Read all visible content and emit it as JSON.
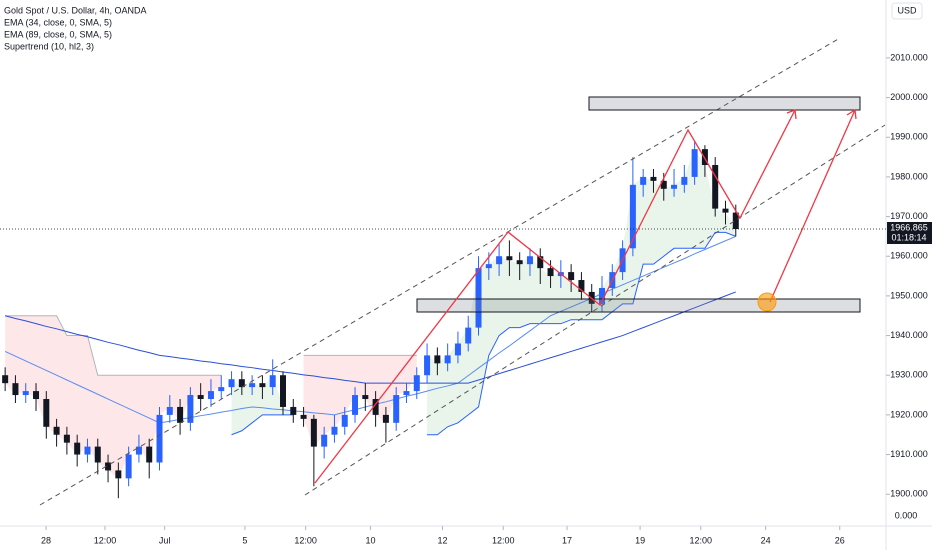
{
  "chart_data": {
    "type": "candlestick",
    "title": "Gold Spot / U.S. Dollar, 4h, OANDA",
    "currency": "USD",
    "countdown": "01:18:14",
    "volume_scale_label": "0.000",
    "up_color": "#2962ff",
    "down_color": "#131722",
    "xlim": [
      -0.5,
      85.5
    ],
    "ylim": [
      1893.5,
      2024.6
    ],
    "yticks": [
      {
        "value": 1900,
        "label": "1900.000"
      },
      {
        "value": 1910,
        "label": "1910.000"
      },
      {
        "value": 1920,
        "label": "1920.000"
      },
      {
        "value": 1930,
        "label": "1930.000"
      },
      {
        "value": 1940,
        "label": "1940.000"
      },
      {
        "value": 1950,
        "label": "1950.000"
      },
      {
        "value": 1960,
        "label": "1960.000"
      },
      {
        "value": 1970,
        "label": "1970.000"
      },
      {
        "value": 1980,
        "label": "1980.000"
      },
      {
        "value": 1990,
        "label": "1990.000"
      },
      {
        "value": 2000,
        "label": "2000.000"
      },
      {
        "value": 2010,
        "label": "2010.000"
      }
    ],
    "xticks": [
      {
        "value": 3.97,
        "label": "28"
      },
      {
        "value": 9.7,
        "label": "12:00"
      },
      {
        "value": 15.5,
        "label": "Jul"
      },
      {
        "value": 23.3,
        "label": "5"
      },
      {
        "value": 29.2,
        "label": "12:00"
      },
      {
        "value": 35.5,
        "label": "10"
      },
      {
        "value": 42.5,
        "label": "12"
      },
      {
        "value": 48.4,
        "label": "12:00"
      },
      {
        "value": 54.6,
        "label": "17"
      },
      {
        "value": 61.7,
        "label": "19"
      },
      {
        "value": 67.6,
        "label": "12:00"
      },
      {
        "value": 73.9,
        "label": "24"
      },
      {
        "value": 81.1,
        "label": "26"
      }
    ],
    "open": [
      1930,
      1928,
      1925,
      1926,
      1924,
      1917,
      1915,
      1913,
      1910,
      1912,
      1908,
      1906,
      1904,
      1910,
      1912,
      1908,
      1920,
      1922,
      1918,
      1925,
      1924,
      1926,
      1927,
      1929,
      1927,
      1928,
      1927,
      1930,
      1922,
      1920,
      1919,
      1912,
      1915,
      1917,
      1920,
      1925,
      1924,
      1920,
      1918,
      1925,
      1926,
      1930,
      1935,
      1933,
      1935,
      1938,
      1942,
      1957,
      1958,
      1960,
      1959,
      1958,
      1960,
      1957,
      1955,
      1956,
      1954,
      1951,
      1948,
      1952,
      1956,
      1962,
      1978,
      1980,
      1979,
      1977,
      1978,
      1980,
      1987,
      1983,
      1972,
      1971
    ],
    "high": [
      1932,
      1930,
      1928,
      1928,
      1926,
      1919,
      1917,
      1915,
      1914,
      1914,
      1910,
      1908,
      1912,
      1915,
      1914,
      1922,
      1925,
      1924,
      1927,
      1928,
      1929,
      1930,
      1931,
      1931,
      1930,
      1930,
      1934,
      1931,
      1924,
      1922,
      1920,
      1917,
      1920,
      1922,
      1927,
      1928,
      1926,
      1922,
      1927,
      1928,
      1932,
      1938,
      1937,
      1938,
      1941,
      1945,
      1960,
      1961,
      1963,
      1964,
      1961,
      1962,
      1962,
      1959,
      1959,
      1958,
      1956,
      1953,
      1955,
      1958,
      1964,
      1985,
      1982,
      1982,
      1981,
      1982,
      1983,
      1989,
      1988,
      1985,
      1974,
      1973
    ],
    "low": [
      1926,
      1923,
      1923,
      1921,
      1914,
      1912,
      1910,
      1907,
      1908,
      1905,
      1903,
      1899,
      1902,
      1908,
      1904,
      1906,
      1918,
      1915,
      1916,
      1921,
      1922,
      1924,
      1925,
      1925,
      1925,
      1924,
      1925,
      1920,
      1918,
      1917,
      1902,
      1909,
      1913,
      1915,
      1918,
      1921,
      1917,
      1913,
      1916,
      1923,
      1924,
      1928,
      1930,
      1931,
      1933,
      1936,
      1940,
      1954,
      1955,
      1955,
      1954,
      1955,
      1953,
      1952,
      1952,
      1951,
      1949,
      1946,
      1946,
      1950,
      1954,
      1960,
      1975,
      1976,
      1974,
      1975,
      1976,
      1978,
      1980,
      1970,
      1968,
      1965
    ],
    "close": [
      1928,
      1925,
      1926,
      1924,
      1917,
      1915,
      1913,
      1910,
      1912,
      1908,
      1906,
      1904,
      1910,
      1912,
      1908,
      1920,
      1922,
      1918,
      1925,
      1924,
      1926,
      1927,
      1929,
      1927,
      1928,
      1927,
      1930,
      1922,
      1920,
      1919,
      1912,
      1915,
      1917,
      1920,
      1925,
      1924,
      1920,
      1918,
      1925,
      1926,
      1930,
      1935,
      1933,
      1935,
      1938,
      1942,
      1957,
      1958,
      1960,
      1959,
      1958,
      1960,
      1957,
      1955,
      1956,
      1954,
      1951,
      1948,
      1952,
      1956,
      1962,
      1978,
      1980,
      1979,
      1977,
      1978,
      1980,
      1987,
      1983,
      1972,
      1971,
      1966.865
    ],
    "series": [
      {
        "name": "EMA (34, close, 0, SMA, 5)",
        "color": "#5b8def",
        "values": [
          1936,
          1934.8,
          1933.6,
          1932.4,
          1931.2,
          1930,
          1928.8,
          1927.6,
          1926.4,
          1925.2,
          1924,
          1922.8,
          1921.6,
          1920.4,
          1919.2,
          1918,
          1918.4,
          1918.9,
          1919.3,
          1919.8,
          1920.2,
          1920.7,
          1921.1,
          1921.6,
          1922,
          1921.8,
          1921.5,
          1921.3,
          1921,
          1920.8,
          1920.5,
          1920.3,
          1920,
          1920.7,
          1921.3,
          1922,
          1922.7,
          1923.3,
          1924,
          1924.7,
          1925.3,
          1926,
          1926.7,
          1927.3,
          1928,
          1929.9,
          1931.8,
          1933.7,
          1935.6,
          1937.4,
          1939.3,
          1941.2,
          1943.1,
          1945,
          1946.1,
          1947.2,
          1948.3,
          1949.4,
          1950.6,
          1951.7,
          1952.8,
          1953.9,
          1955,
          1956.1,
          1957.2,
          1958.3,
          1959.4,
          1960.6,
          1961.7,
          1962.8,
          1963.9,
          1965
        ]
      },
      {
        "name": "EMA (89, close, 0, SMA, 5)",
        "color": "#2a4fd6",
        "values": [
          1945,
          1944.3,
          1943.7,
          1943,
          1942.3,
          1941.7,
          1941,
          1940.3,
          1939.7,
          1939,
          1938.3,
          1937.7,
          1937,
          1936.3,
          1935.7,
          1935,
          1934.7,
          1934.3,
          1934,
          1933.6,
          1933.3,
          1932.9,
          1932.6,
          1932.2,
          1931.9,
          1931.5,
          1931.2,
          1930.8,
          1930.5,
          1930.1,
          1929.8,
          1929.4,
          1929.1,
          1928.7,
          1928.4,
          1928,
          1928,
          1928,
          1928,
          1928,
          1928,
          1928,
          1928,
          1928,
          1928,
          1928,
          1928.8,
          1929.6,
          1930.4,
          1931.2,
          1932,
          1932.8,
          1933.6,
          1934.4,
          1935.2,
          1936,
          1936.8,
          1937.6,
          1938.4,
          1939.2,
          1940,
          1941,
          1942,
          1943,
          1944,
          1945,
          1946,
          1947,
          1948,
          1949,
          1950,
          1951
        ]
      }
    ],
    "supertrend": {
      "name": "Supertrend (10, hl2, 3)",
      "down": {
        "color": "#b2b5be",
        "fill": "rgba(242,54,69,0.12)",
        "values": [
          1945,
          1945,
          1945,
          1945,
          1945,
          1945,
          1940,
          1940,
          1940,
          1930,
          1930,
          1930,
          1930,
          1930,
          1930,
          1930,
          1930,
          1930,
          1930,
          1930,
          1930,
          1930,
          null,
          null,
          null,
          null,
          null,
          null,
          null,
          1935,
          1935,
          1935,
          1935,
          1935,
          1935,
          1935,
          1935,
          1935,
          1935,
          1935,
          1935,
          null,
          null,
          null,
          null,
          null,
          null,
          null,
          null,
          null,
          null,
          null,
          null,
          null,
          null,
          null,
          null,
          null,
          null,
          null,
          null,
          null,
          null,
          null,
          null,
          null,
          null,
          null,
          null,
          null,
          null,
          null
        ]
      },
      "up": {
        "color": "#2962ff",
        "fill": "rgba(76,175,80,0.12)",
        "values": [
          null,
          null,
          null,
          null,
          null,
          null,
          null,
          null,
          null,
          null,
          null,
          null,
          null,
          null,
          null,
          null,
          null,
          null,
          null,
          null,
          null,
          null,
          1915,
          1916,
          1918,
          1920,
          1920,
          1920,
          1920,
          null,
          null,
          null,
          null,
          null,
          null,
          null,
          null,
          null,
          null,
          null,
          null,
          1915,
          1915,
          1917,
          1918,
          1920,
          1922,
          1935,
          1940,
          1942,
          1942,
          1943,
          1943,
          1943,
          1943,
          1944,
          1944,
          1944,
          1944,
          1946,
          1948,
          1948,
          1958,
          1958,
          1960,
          1962,
          1962,
          1962,
          1962,
          1966,
          1966,
          1965
        ]
      }
    }
  }
}
